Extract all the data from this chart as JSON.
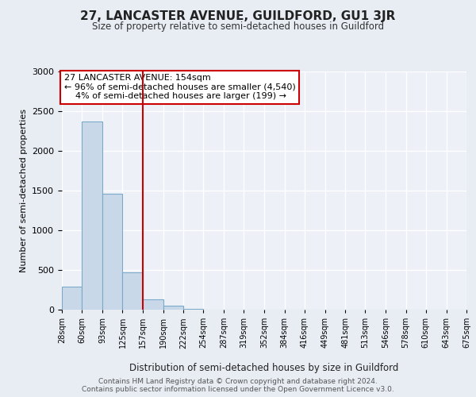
{
  "title": "27, LANCASTER AVENUE, GUILDFORD, GU1 3JR",
  "subtitle": "Size of property relative to semi-detached houses in Guildford",
  "xlabel": "Distribution of semi-detached houses by size in Guildford",
  "ylabel": "Number of semi-detached properties",
  "bar_color": "#c8d8e8",
  "bar_edge_color": "#7aaac8",
  "background_color": "#e8edf4",
  "plot_bg_color": "#edf1f7",
  "annotation_line1": "27 LANCASTER AVENUE: 154sqm",
  "annotation_line2": "← 96% of semi-detached houses are smaller (4,540)",
  "annotation_line3": "    4% of semi-detached houses are larger (199) →",
  "annotation_box_color": "#ffffff",
  "annotation_box_edge": "#cc0000",
  "vline_x": 157,
  "vline_color": "#cc0000",
  "bin_edges": [
    28,
    60,
    93,
    125,
    157,
    190,
    222,
    254,
    287,
    319,
    352,
    384,
    416,
    449,
    481,
    513,
    546,
    578,
    610,
    643,
    675
  ],
  "bin_labels": [
    "28sqm",
    "60sqm",
    "93sqm",
    "125sqm",
    "157sqm",
    "190sqm",
    "222sqm",
    "254sqm",
    "287sqm",
    "319sqm",
    "352sqm",
    "384sqm",
    "416sqm",
    "449sqm",
    "481sqm",
    "513sqm",
    "546sqm",
    "578sqm",
    "610sqm",
    "643sqm",
    "675sqm"
  ],
  "bar_heights": [
    290,
    2370,
    1460,
    470,
    130,
    55,
    10,
    0,
    0,
    0,
    0,
    0,
    0,
    0,
    0,
    0,
    0,
    0,
    0,
    0
  ],
  "ylim": [
    0,
    3000
  ],
  "yticks": [
    0,
    500,
    1000,
    1500,
    2000,
    2500,
    3000
  ],
  "footnote1": "Contains HM Land Registry data © Crown copyright and database right 2024.",
  "footnote2": "Contains public sector information licensed under the Open Government Licence v3.0."
}
